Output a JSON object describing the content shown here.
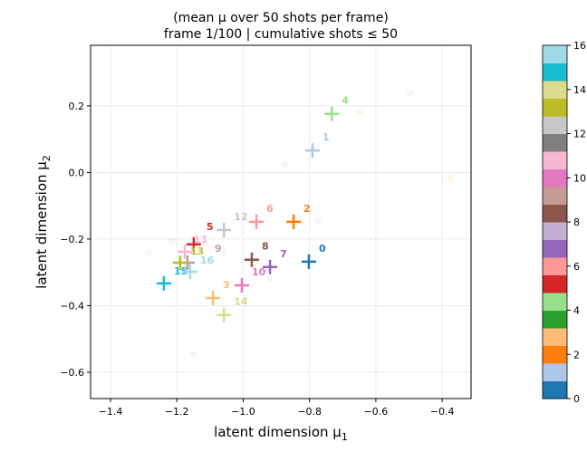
{
  "chart_data": {
    "type": "scatter",
    "title_lines": [
      "(mean μ over 50 shots per frame)",
      "frame 1/100  |  cumulative shots ≤ 50"
    ],
    "xlabel": "latent dimension μ",
    "xlabel_sub": "1",
    "ylabel": "latent dimension μ",
    "ylabel_sub": "2",
    "xlim": [
      -1.46,
      -0.313
    ],
    "ylim": [
      -0.679,
      0.382
    ],
    "xticks": [
      -1.4,
      -1.2,
      -1.0,
      -0.8,
      -0.6,
      -0.4
    ],
    "xtick_labels": [
      "−1.4",
      "−1.2",
      "−1.0",
      "−0.8",
      "−0.6",
      "−0.4"
    ],
    "yticks": [
      0.2,
      0.0,
      -0.2,
      -0.4,
      -0.6
    ],
    "ytick_labels": [
      "0.2",
      "0.0",
      "−0.2",
      "−0.4",
      "−0.6"
    ],
    "grid": true,
    "colormap": [
      "#1f77b4",
      "#aec7e8",
      "#ff7f0e",
      "#ffbb78",
      "#2ca02c",
      "#98df8a",
      "#d62728",
      "#ff9896",
      "#9467bd",
      "#c5b0d5",
      "#8c564b",
      "#c49c94",
      "#e377c2",
      "#f7b6d2",
      "#7f7f7f",
      "#c7c7c7",
      "#bcbd22",
      "#dbdb8d",
      "#17becf",
      "#9edae5"
    ],
    "colorbar": {
      "range": [
        0,
        16
      ],
      "ticks": [
        "0",
        "2",
        "4",
        "6",
        "8",
        "10",
        "12",
        "14",
        "16"
      ]
    },
    "means": [
      {
        "label": "0",
        "x": -0.802,
        "y": -0.268
      },
      {
        "label": "1",
        "x": -0.791,
        "y": 0.066
      },
      {
        "label": "2",
        "x": -0.848,
        "y": -0.148
      },
      {
        "label": "3",
        "x": -1.091,
        "y": -0.377
      },
      {
        "label": "4",
        "x": -0.733,
        "y": 0.176
      },
      {
        "label": "5",
        "x": -1.149,
        "y": -0.216
      },
      {
        "label": "6",
        "x": -0.96,
        "y": -0.148
      },
      {
        "label": "7",
        "x": -0.919,
        "y": -0.284
      },
      {
        "label": "8",
        "x": -0.974,
        "y": -0.262
      },
      {
        "label": "9",
        "x": -1.168,
        "y": -0.271
      },
      {
        "label": "10",
        "x": -1.004,
        "y": -0.339
      },
      {
        "label": "11",
        "x": -1.176,
        "y": -0.238
      },
      {
        "label": "12",
        "x": -1.058,
        "y": -0.173
      },
      {
        "label": "13",
        "x": -1.19,
        "y": -0.271
      },
      {
        "label": "14",
        "x": -1.058,
        "y": -0.428
      },
      {
        "label": "15",
        "x": -1.239,
        "y": -0.333
      },
      {
        "label": "16",
        "x": -1.16,
        "y": -0.298
      }
    ],
    "shots": [
      {
        "x": -0.496,
        "y": 0.237,
        "c": 5
      },
      {
        "x": -0.375,
        "y": -0.015,
        "c": 3
      },
      {
        "x": -0.873,
        "y": 0.023,
        "c": 1
      },
      {
        "x": -0.775,
        "y": -0.146,
        "c": 1
      },
      {
        "x": -1.151,
        "y": -0.546,
        "c": 15
      },
      {
        "x": -1.285,
        "y": -0.242,
        "c": 15
      },
      {
        "x": -1.217,
        "y": -0.205,
        "c": 15
      },
      {
        "x": -1.058,
        "y": -0.242,
        "c": 15
      },
      {
        "x": -0.92,
        "y": -0.32,
        "c": 15
      },
      {
        "x": -0.65,
        "y": 0.18,
        "c": 3
      }
    ]
  }
}
